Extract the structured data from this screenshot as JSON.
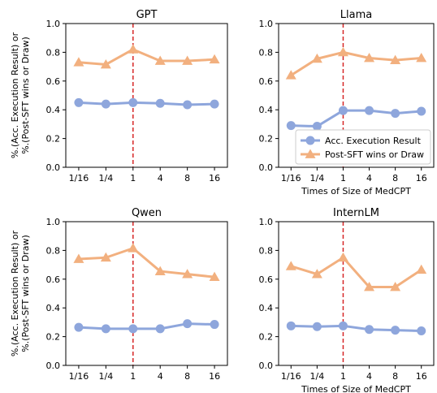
{
  "chart_data": [
    {
      "type": "line",
      "title": "GPT",
      "x": [
        "1/16",
        "1/4",
        "1",
        "4",
        "8",
        "16"
      ],
      "xlabel": "",
      "ylabel": "%.(Acc. Execution Result) or\n%.(Post-SFT wins or Draw)",
      "ylim": [
        0,
        1
      ],
      "yticks": [
        "0.0",
        "0.2",
        "0.4",
        "0.6",
        "0.8",
        "1.0"
      ],
      "vline_at": "1",
      "series": [
        {
          "name": "Acc. Execution Result",
          "color": "#8EA6DC",
          "marker": "circle",
          "values": [
            0.45,
            0.44,
            0.45,
            0.445,
            0.435,
            0.44
          ]
        },
        {
          "name": "Post-SFT wins or Draw",
          "color": "#F2B07F",
          "marker": "triangle",
          "values": [
            0.73,
            0.715,
            0.82,
            0.74,
            0.74,
            0.75
          ]
        }
      ],
      "legend": false
    },
    {
      "type": "line",
      "title": "Llama",
      "x": [
        "1/16",
        "1/4",
        "1",
        "4",
        "8",
        "16"
      ],
      "xlabel": "Times of Size of MedCPT",
      "ylabel": "",
      "ylim": [
        0,
        1
      ],
      "yticks": [
        "0.0",
        "0.2",
        "0.4",
        "0.6",
        "0.8",
        "1.0"
      ],
      "vline_at": "1",
      "series": [
        {
          "name": "Acc. Execution Result",
          "color": "#8EA6DC",
          "marker": "circle",
          "values": [
            0.29,
            0.285,
            0.395,
            0.395,
            0.375,
            0.39
          ]
        },
        {
          "name": "Post-SFT wins or Draw",
          "color": "#F2B07F",
          "marker": "triangle",
          "values": [
            0.64,
            0.755,
            0.8,
            0.76,
            0.745,
            0.76
          ]
        }
      ],
      "legend": true,
      "legend_position": "lower-right"
    },
    {
      "type": "line",
      "title": "Qwen",
      "x": [
        "1/16",
        "1/4",
        "1",
        "4",
        "8",
        "16"
      ],
      "xlabel": "",
      "ylabel": "%.(Acc. Execution Result) or\n%.(Post-SFT wins or Draw)",
      "ylim": [
        0,
        1
      ],
      "yticks": [
        "0.0",
        "0.2",
        "0.4",
        "0.6",
        "0.8",
        "1.0"
      ],
      "vline_at": "1",
      "series": [
        {
          "name": "Acc. Execution Result",
          "color": "#8EA6DC",
          "marker": "circle",
          "values": [
            0.265,
            0.255,
            0.255,
            0.255,
            0.29,
            0.285
          ]
        },
        {
          "name": "Post-SFT wins or Draw",
          "color": "#F2B07F",
          "marker": "triangle",
          "values": [
            0.74,
            0.75,
            0.815,
            0.655,
            0.635,
            0.615
          ]
        }
      ],
      "legend": false
    },
    {
      "type": "line",
      "title": "InternLM",
      "x": [
        "1/16",
        "1/4",
        "1",
        "4",
        "8",
        "16"
      ],
      "xlabel": "Times of Size of MedCPT",
      "ylabel": "",
      "ylim": [
        0,
        1
      ],
      "yticks": [
        "0.0",
        "0.2",
        "0.4",
        "0.6",
        "0.8",
        "1.0"
      ],
      "vline_at": "1",
      "series": [
        {
          "name": "Acc. Execution Result",
          "color": "#8EA6DC",
          "marker": "circle",
          "values": [
            0.275,
            0.27,
            0.275,
            0.25,
            0.245,
            0.24
          ]
        },
        {
          "name": "Post-SFT wins or Draw",
          "color": "#F2B07F",
          "marker": "triangle",
          "values": [
            0.69,
            0.635,
            0.75,
            0.545,
            0.545,
            0.665
          ]
        }
      ],
      "legend": false
    }
  ],
  "styles": {
    "vline_color": "#D62728",
    "axis_color": "#000000"
  }
}
